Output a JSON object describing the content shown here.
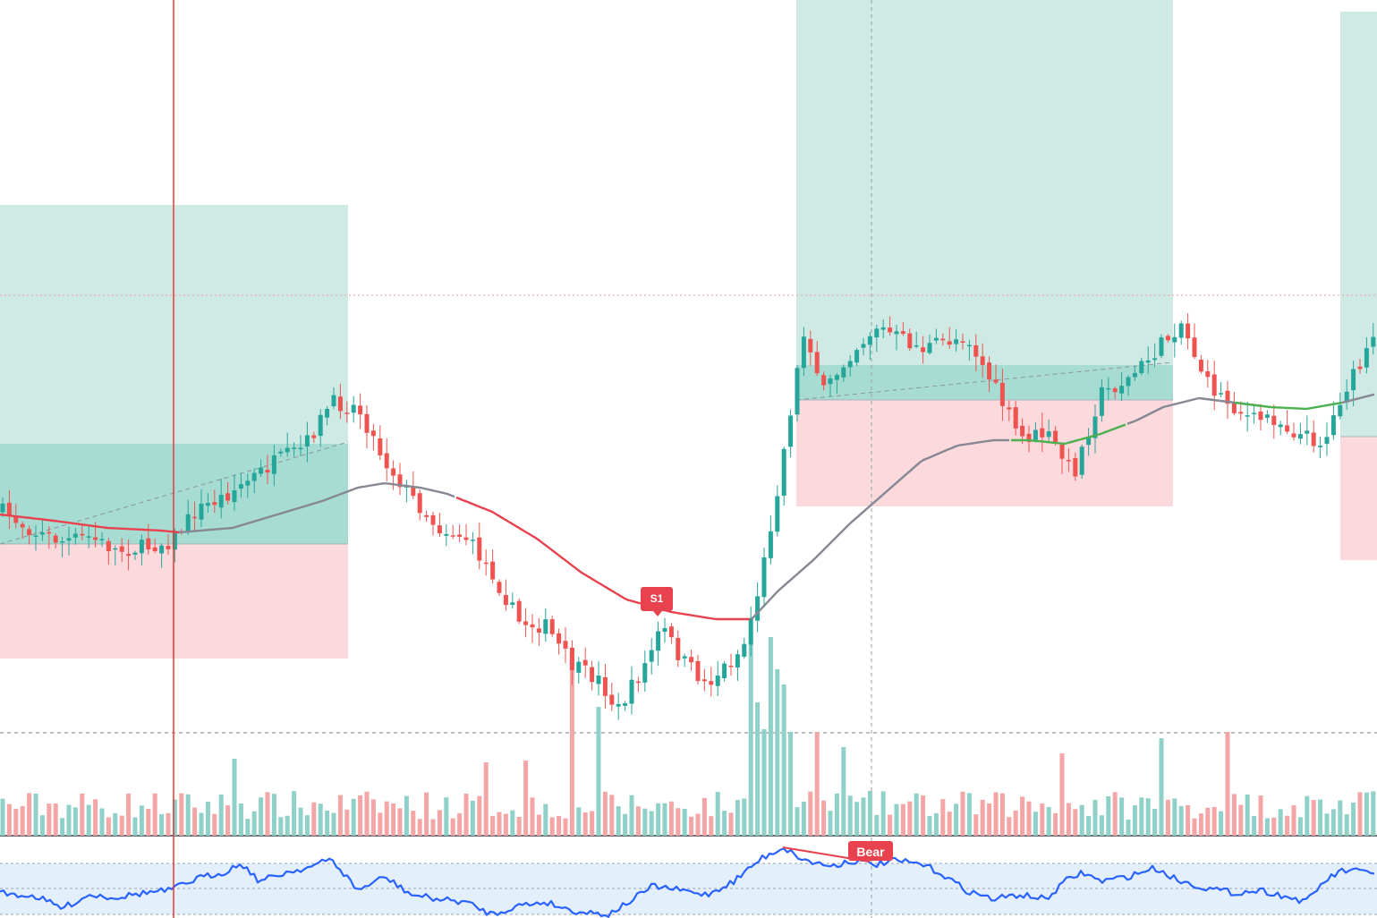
{
  "chart_data": {
    "type": "candlestick",
    "title": "",
    "xlabel": "",
    "ylabel": "",
    "grid": false,
    "price_range": [
      0,
      1000
    ],
    "colors": {
      "up": "#26a69a",
      "down": "#ef5350",
      "up_volume": "#8fd0c8",
      "down_volume": "#f4a5a5",
      "ma_bear": "#e8424f",
      "ma_neutral": "#868993",
      "ma_bull": "#4caf50",
      "rsi_line": "#2962ff",
      "rsi_band": "#e3f0fc",
      "profit_zone": "#cfeae4",
      "entry_zone": "#a7dcd2",
      "stop_zone": "#fcd9dc",
      "cursor_line": "#e53935",
      "level_line": "#ef9a9a"
    },
    "annotations": {
      "signal_label": "S1",
      "divergence_label": "Bear"
    },
    "anchors": [
      [
        0,
        570
      ],
      [
        0.04,
        595
      ],
      [
        0.07,
        605
      ],
      [
        0.1,
        600
      ],
      [
        0.13,
        615
      ],
      [
        0.16,
        612
      ],
      [
        0.19,
        605
      ],
      [
        0.22,
        570
      ],
      [
        0.25,
        555
      ],
      [
        0.28,
        535
      ],
      [
        0.31,
        515
      ],
      [
        0.34,
        500
      ],
      [
        0.37,
        450
      ],
      [
        0.4,
        455
      ],
      [
        0.43,
        515
      ],
      [
        0.46,
        555
      ],
      [
        0.49,
        590
      ],
      [
        0.52,
        600
      ],
      [
        0.55,
        640
      ],
      [
        0.58,
        695
      ],
      [
        0.61,
        700
      ],
      [
        0.64,
        745
      ],
      [
        0.67,
        760
      ],
      [
        0.69,
        795
      ],
      [
        0.72,
        745
      ],
      [
        0.74,
        700
      ],
      [
        0.76,
        735
      ],
      [
        0.79,
        765
      ],
      [
        0.83,
        725
      ],
      [
        0.85,
        650
      ],
      [
        0.87,
        540
      ],
      [
        0.89,
        420
      ],
      [
        0.9,
        365
      ],
      [
        0.92,
        440
      ],
      [
        0.95,
        395
      ],
      [
        0.98,
        365
      ],
      [
        1.03,
        390
      ],
      [
        1.08,
        375
      ],
      [
        1.11,
        430
      ],
      [
        1.14,
        490
      ],
      [
        1.17,
        485
      ],
      [
        1.2,
        530
      ],
      [
        1.23,
        440
      ],
      [
        1.26,
        425
      ],
      [
        1.29,
        395
      ],
      [
        1.32,
        360
      ],
      [
        1.35,
        430
      ],
      [
        1.38,
        455
      ],
      [
        1.4,
        470
      ],
      [
        1.42,
        465
      ],
      [
        1.45,
        485
      ],
      [
        1.48,
        495
      ],
      [
        1.5,
        440
      ],
      [
        1.52,
        410
      ],
      [
        1.539,
        375
      ]
    ],
    "ma_anchors": [
      [
        0,
        575
      ],
      [
        0.06,
        582
      ],
      [
        0.12,
        590
      ],
      [
        0.18,
        593
      ],
      [
        0.2,
        595
      ],
      [
        0.26,
        590
      ],
      [
        0.3,
        578
      ],
      [
        0.36,
        560
      ],
      [
        0.4,
        545
      ],
      [
        0.43,
        540
      ],
      [
        0.47,
        545
      ],
      [
        0.5,
        552
      ],
      [
        0.55,
        572
      ],
      [
        0.6,
        602
      ],
      [
        0.65,
        640
      ],
      [
        0.7,
        670
      ],
      [
        0.75,
        684
      ],
      [
        0.8,
        692
      ],
      [
        0.84,
        692
      ],
      [
        0.87,
        660
      ],
      [
        0.91,
        625
      ],
      [
        0.95,
        585
      ],
      [
        0.99,
        550
      ],
      [
        1.03,
        515
      ],
      [
        1.07,
        498
      ],
      [
        1.11,
        492
      ],
      [
        1.15,
        492
      ],
      [
        1.19,
        496
      ],
      [
        1.23,
        485
      ],
      [
        1.27,
        470
      ],
      [
        1.3,
        455
      ],
      [
        1.34,
        445
      ],
      [
        1.38,
        450
      ],
      [
        1.42,
        455
      ],
      [
        1.46,
        457
      ],
      [
        1.5,
        450
      ],
      [
        1.539,
        440
      ]
    ],
    "ma_segments": [
      {
        "trend": "bear",
        "from": 0.0,
        "to": 0.2
      },
      {
        "trend": "neutral",
        "from": 0.2,
        "to": 0.51
      },
      {
        "trend": "bear",
        "from": 0.51,
        "to": 0.84
      },
      {
        "trend": "neutral",
        "from": 0.84,
        "to": 1.13
      },
      {
        "trend": "bull",
        "from": 1.13,
        "to": 1.26
      },
      {
        "trend": "neutral",
        "from": 1.26,
        "to": 1.38
      },
      {
        "trend": "bull",
        "from": 1.38,
        "to": 1.5
      },
      {
        "trend": "neutral",
        "from": 1.5,
        "to": 1.539
      }
    ],
    "rsi_anchors": [
      [
        0,
        998
      ],
      [
        0.04,
        1002
      ],
      [
        0.07,
        1015
      ],
      [
        0.1,
        1000
      ],
      [
        0.13,
        1003
      ],
      [
        0.16,
        998
      ],
      [
        0.19,
        995
      ],
      [
        0.22,
        982
      ],
      [
        0.25,
        975
      ],
      [
        0.27,
        965
      ],
      [
        0.29,
        985
      ],
      [
        0.32,
        975
      ],
      [
        0.35,
        968
      ],
      [
        0.37,
        960
      ],
      [
        0.4,
        995
      ],
      [
        0.43,
        980
      ],
      [
        0.46,
        1000
      ],
      [
        0.49,
        1005
      ],
      [
        0.52,
        1008
      ],
      [
        0.55,
        1022
      ],
      [
        0.58,
        1012
      ],
      [
        0.61,
        1008
      ],
      [
        0.64,
        1018
      ],
      [
        0.68,
        1022
      ],
      [
        0.7,
        1010
      ],
      [
        0.73,
        990
      ],
      [
        0.76,
        995
      ],
      [
        0.79,
        1000
      ],
      [
        0.82,
        985
      ],
      [
        0.85,
        960
      ],
      [
        0.875,
        947
      ],
      [
        0.9,
        962
      ],
      [
        0.93,
        968
      ],
      [
        0.95,
        962
      ],
      [
        0.98,
        966
      ],
      [
        1.0,
        962
      ],
      [
        1.03,
        966
      ],
      [
        1.05,
        975
      ],
      [
        1.08,
        995
      ],
      [
        1.11,
        1005
      ],
      [
        1.14,
        1000
      ],
      [
        1.17,
        1005
      ],
      [
        1.19,
        985
      ],
      [
        1.21,
        975
      ],
      [
        1.23,
        985
      ],
      [
        1.26,
        980
      ],
      [
        1.29,
        970
      ],
      [
        1.32,
        985
      ],
      [
        1.35,
        993
      ],
      [
        1.38,
        998
      ],
      [
        1.41,
        995
      ],
      [
        1.44,
        1003
      ],
      [
        1.46,
        1008
      ],
      [
        1.48,
        985
      ],
      [
        1.5,
        973
      ],
      [
        1.539,
        975
      ]
    ],
    "rsi_levels": [
      965,
      993,
      1022
    ],
    "volume_baseline": 934,
    "volume_spikes": [
      [
        0.265,
        848
      ],
      [
        0.545,
        852
      ],
      [
        0.59,
        850
      ],
      [
        0.641,
        728
      ],
      [
        0.67,
        790
      ],
      [
        0.84,
        720
      ],
      [
        0.846,
        785
      ],
      [
        0.852,
        815
      ],
      [
        0.858,
        682
      ],
      [
        0.864,
        712
      ],
      [
        0.872,
        748
      ],
      [
        0.878,
        765
      ],
      [
        0.884,
        818
      ],
      [
        0.91,
        818
      ],
      [
        0.94,
        835
      ],
      [
        1.19,
        842
      ],
      [
        1.296,
        825
      ],
      [
        1.37,
        818
      ]
    ],
    "trade_boxes": [
      {
        "x0": 0,
        "x1": 389,
        "profit_top": 229,
        "entry_top": 496,
        "entry_bottom": 608,
        "stop_bottom": 736
      },
      {
        "x0": 890,
        "x1": 1311,
        "profit_top": 0,
        "entry_top": 408,
        "entry_bottom": 447,
        "stop_bottom": 566
      },
      {
        "x0": 1498,
        "x1": 1539,
        "profit_top": 13,
        "entry_top": 488,
        "entry_bottom": 488,
        "stop_bottom": 626
      }
    ],
    "trade_entry_lines": [
      [
        [
          0,
          608
        ],
        [
          389,
          494
        ]
      ],
      [
        [
          890,
          447
        ],
        [
          1311,
          405
        ]
      ]
    ],
    "divergence": {
      "from": [
        875,
        947
      ],
      "to": [
        972,
        963
      ]
    }
  }
}
